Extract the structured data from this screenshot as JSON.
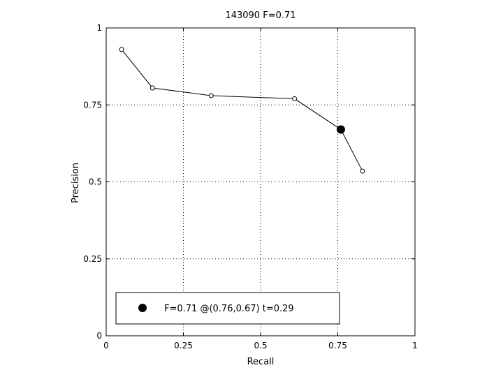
{
  "chart_data": {
    "type": "line",
    "title": "143090 F=0.71",
    "xlabel": "Recall",
    "ylabel": "Precision",
    "xlim": [
      0,
      1
    ],
    "ylim": [
      0,
      1
    ],
    "grid": true,
    "x_ticks": [
      0,
      0.25,
      0.5,
      0.75,
      1
    ],
    "y_ticks": [
      0,
      0.25,
      0.5,
      0.75,
      1
    ],
    "x_tick_labels": [
      "0",
      "0.25",
      "0.5",
      "0.75",
      "1"
    ],
    "y_tick_labels": [
      "0",
      "0.25",
      "0.5",
      "0.75",
      "1"
    ],
    "series": [
      {
        "marker": "open-circle",
        "color": "#000000",
        "points": [
          {
            "x": 0.05,
            "y": 0.93
          },
          {
            "x": 0.15,
            "y": 0.805
          },
          {
            "x": 0.34,
            "y": 0.78
          },
          {
            "x": 0.61,
            "y": 0.77
          },
          {
            "x": 0.76,
            "y": 0.67
          },
          {
            "x": 0.83,
            "y": 0.535
          }
        ]
      }
    ],
    "highlight_point": {
      "x": 0.76,
      "y": 0.67,
      "marker": "filled-circle"
    },
    "legend": {
      "placement": "bottom-left",
      "text": "F=0.71 @(0.76,0.67) t=0.29"
    }
  }
}
